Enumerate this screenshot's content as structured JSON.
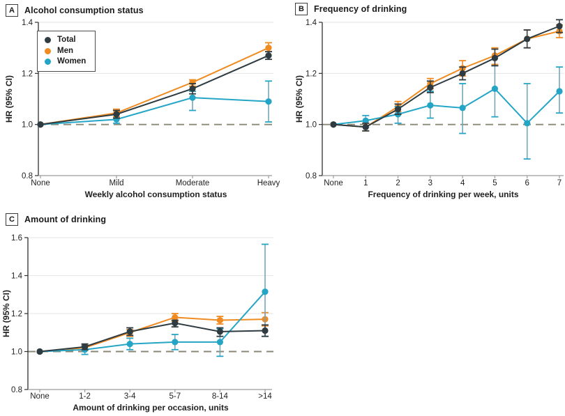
{
  "figure": {
    "description": "Three-panel hazard ratio figure",
    "ref_line_meaning": "HR = 1.0 reference"
  },
  "colors": {
    "total": "#2e3b40",
    "men": "#f08b22",
    "women": "#25a5c6",
    "women_ci": "#74a7b8",
    "total_ci": "#3c484d",
    "dashed": "#8b8776",
    "grid": "#e6e6e3",
    "axis": "#2f2f2f",
    "axis_bottom": "#9b9b97",
    "text": "#1f1f1f"
  },
  "legend": {
    "items": [
      {
        "label": "Total",
        "color": "#2e3b40"
      },
      {
        "label": "Men",
        "color": "#f08b22"
      },
      {
        "label": "Women",
        "color": "#25a5c6"
      }
    ]
  },
  "panels": [
    {
      "letter": "A",
      "title": "Alcohol consumption status"
    },
    {
      "letter": "B",
      "title": "Frequency of drinking"
    },
    {
      "letter": "C",
      "title": "Amount of drinking"
    }
  ],
  "chart_data": [
    {
      "type": "line",
      "panel": "A",
      "title": "Alcohol consumption status",
      "xlabel": "Weekly alcohol consumption status",
      "ylabel": "HR (95% CI)",
      "categories": [
        "None",
        "Mild",
        "Moderate",
        "Heavy"
      ],
      "ylim": [
        0.8,
        1.4
      ],
      "yticks": [
        0.8,
        1.0,
        1.2,
        1.4
      ],
      "ytick_labels": [
        "0.8",
        "1.0",
        "1.2",
        "1.4"
      ],
      "ref_line": 1.0,
      "grid": true,
      "legend_position": "top-left-inside",
      "series": [
        {
          "name": "Total",
          "color": "#2e3b40",
          "ci_color": "#3c484d",
          "values": [
            1.0,
            1.04,
            1.14,
            1.27
          ],
          "ci_low": [
            1.0,
            1.025,
            1.12,
            1.255
          ],
          "ci_high": [
            1.0,
            1.055,
            1.16,
            1.285
          ]
        },
        {
          "name": "Men",
          "color": "#f08b22",
          "ci_color": "#f08b22",
          "values": [
            1.0,
            1.045,
            1.165,
            1.3
          ],
          "ci_low": [
            1.0,
            1.03,
            1.15,
            1.285
          ],
          "ci_high": [
            1.0,
            1.06,
            1.175,
            1.32
          ]
        },
        {
          "name": "Women",
          "color": "#25a5c6",
          "ci_color": "#74a7b8",
          "values": [
            1.0,
            1.02,
            1.105,
            1.09
          ],
          "ci_low": [
            1.0,
            1.005,
            1.055,
            1.01
          ],
          "ci_high": [
            1.0,
            1.04,
            1.13,
            1.17
          ]
        }
      ]
    },
    {
      "type": "line",
      "panel": "B",
      "title": "Frequency of drinking",
      "xlabel": "Frequency of drinking per week, units",
      "ylabel": "HR (95% CI)",
      "categories": [
        "None",
        "1",
        "2",
        "3",
        "4",
        "5",
        "6",
        "7"
      ],
      "ylim": [
        0.8,
        1.4
      ],
      "yticks": [
        0.8,
        1.0,
        1.2,
        1.4
      ],
      "ytick_labels": [
        "0.8",
        "1.0",
        "1.2",
        "1.4"
      ],
      "ref_line": 1.0,
      "grid": true,
      "legend_position": "none",
      "series": [
        {
          "name": "Total",
          "color": "#2e3b40",
          "ci_color": "#3c484d",
          "values": [
            1.0,
            0.99,
            1.06,
            1.145,
            1.2,
            1.26,
            1.335,
            1.385
          ],
          "ci_low": [
            1.0,
            0.975,
            1.04,
            1.125,
            1.175,
            1.23,
            1.3,
            1.36
          ],
          "ci_high": [
            1.0,
            1.005,
            1.08,
            1.17,
            1.225,
            1.295,
            1.37,
            1.41
          ]
        },
        {
          "name": "Men",
          "color": "#f08b22",
          "ci_color": "#f08b22",
          "values": [
            1.0,
            0.99,
            1.07,
            1.16,
            1.22,
            1.27,
            1.335,
            1.365
          ],
          "ci_low": [
            1.0,
            0.975,
            1.05,
            1.14,
            1.19,
            1.235,
            1.3,
            1.34
          ],
          "ci_high": [
            1.0,
            1.005,
            1.09,
            1.18,
            1.25,
            1.3,
            1.37,
            1.39
          ]
        },
        {
          "name": "Women",
          "color": "#25a5c6",
          "ci_color": "#74a7b8",
          "values": [
            1.0,
            1.015,
            1.04,
            1.075,
            1.065,
            1.14,
            1.005,
            1.13
          ],
          "ci_low": [
            1.0,
            0.99,
            1.005,
            1.025,
            0.965,
            1.03,
            0.865,
            1.045
          ],
          "ci_high": [
            1.0,
            1.035,
            1.07,
            1.13,
            1.16,
            1.23,
            1.16,
            1.225
          ]
        }
      ]
    },
    {
      "type": "line",
      "panel": "C",
      "title": "Amount of drinking",
      "xlabel": "Amount of drinking per occasion, units",
      "ylabel": "HR (95% CI)",
      "categories": [
        "None",
        "1-2",
        "3-4",
        "5-7",
        "8-14",
        ">14"
      ],
      "ylim": [
        0.8,
        1.6
      ],
      "yticks": [
        0.8,
        1.0,
        1.2,
        1.4,
        1.6
      ],
      "ytick_labels": [
        "0.8",
        "1.0",
        "1.2",
        "1.4",
        "1.6"
      ],
      "ref_line": 1.0,
      "grid": true,
      "legend_position": "none",
      "series": [
        {
          "name": "Total",
          "color": "#2e3b40",
          "ci_color": "#3c484d",
          "values": [
            1.0,
            1.025,
            1.105,
            1.15,
            1.105,
            1.11
          ],
          "ci_low": [
            1.0,
            1.01,
            1.085,
            1.13,
            1.08,
            1.08
          ],
          "ci_high": [
            1.0,
            1.04,
            1.125,
            1.165,
            1.125,
            1.14
          ]
        },
        {
          "name": "Men",
          "color": "#f08b22",
          "ci_color": "#f08b22",
          "values": [
            1.0,
            1.02,
            1.1,
            1.18,
            1.165,
            1.17
          ],
          "ci_low": [
            1.0,
            1.005,
            1.08,
            1.16,
            1.145,
            1.135
          ],
          "ci_high": [
            1.0,
            1.035,
            1.115,
            1.2,
            1.185,
            1.205
          ]
        },
        {
          "name": "Women",
          "color": "#25a5c6",
          "ci_color": "#74a7b8",
          "values": [
            1.0,
            1.01,
            1.04,
            1.05,
            1.05,
            1.315
          ],
          "ci_low": [
            1.0,
            0.985,
            1.01,
            1.01,
            0.975,
            1.08
          ],
          "ci_high": [
            1.0,
            1.03,
            1.07,
            1.09,
            1.12,
            1.565
          ]
        }
      ]
    }
  ]
}
